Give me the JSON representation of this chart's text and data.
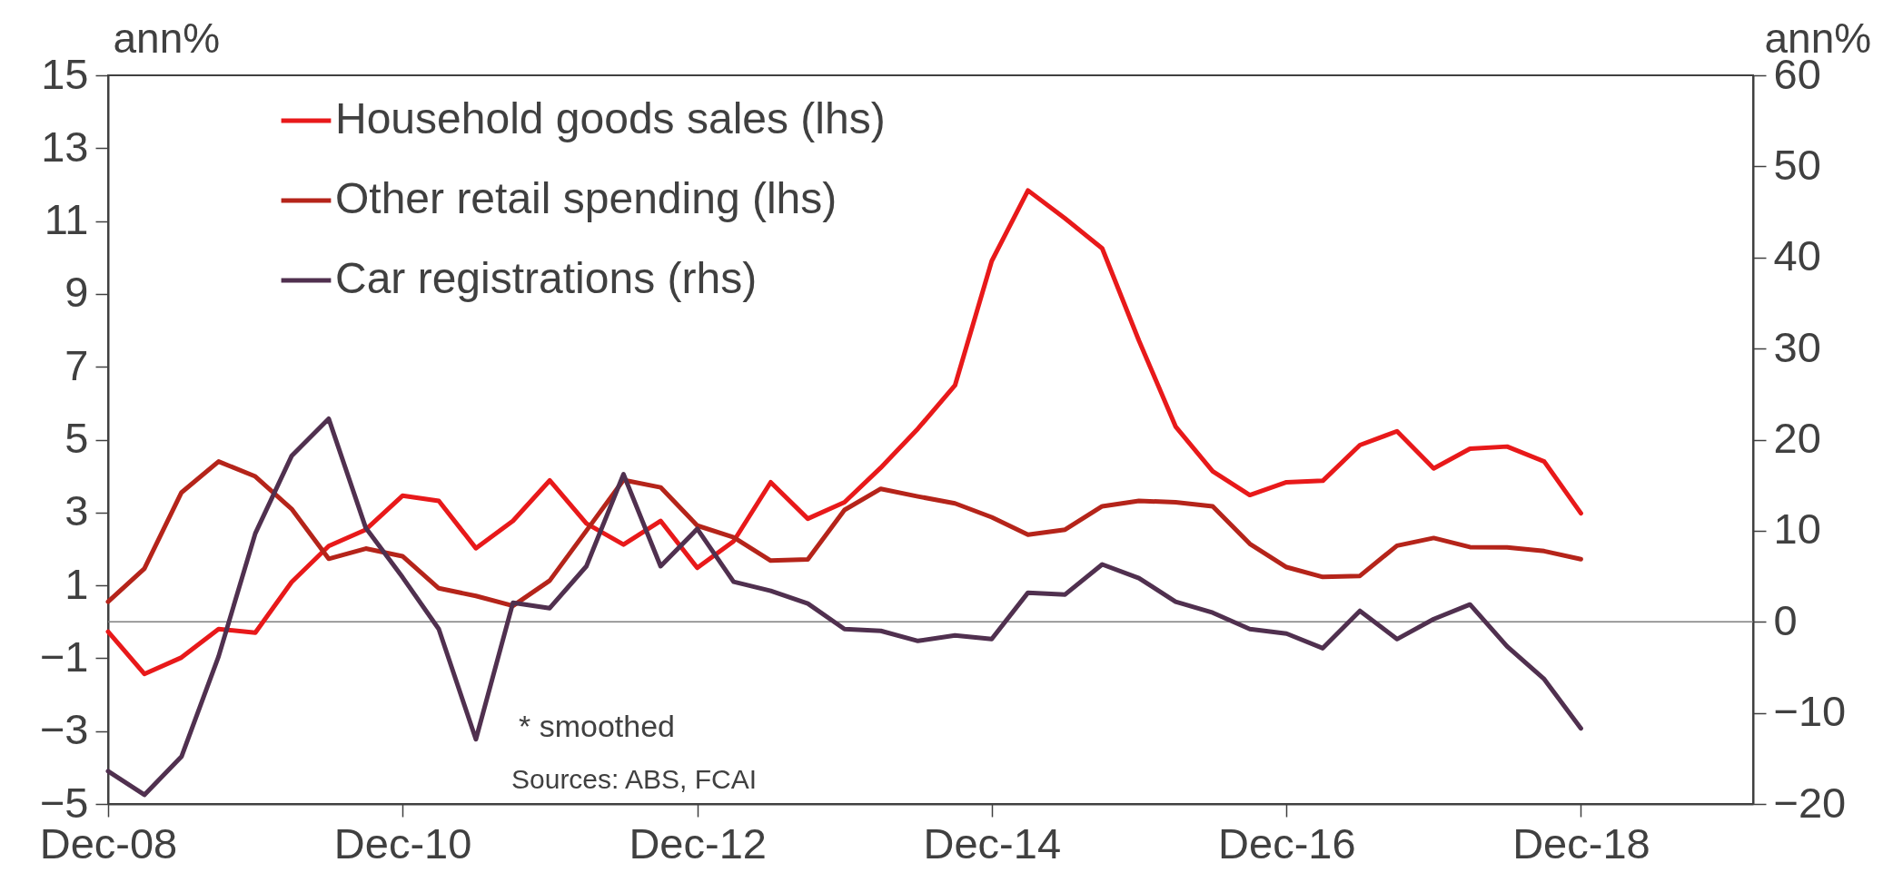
{
  "chart_data": {
    "type": "line",
    "ylabel": "ann%",
    "y2label": "ann%",
    "x": [
      "2008-12",
      "2009-03",
      "2009-06",
      "2009-09",
      "2009-12",
      "2010-03",
      "2010-06",
      "2010-09",
      "2010-12",
      "2011-03",
      "2011-06",
      "2011-09",
      "2011-12",
      "2012-03",
      "2012-06",
      "2012-09",
      "2012-12",
      "2013-03",
      "2013-06",
      "2013-09",
      "2013-12",
      "2014-03",
      "2014-06",
      "2014-09",
      "2014-12",
      "2015-03",
      "2015-06",
      "2015-09",
      "2015-12",
      "2016-03",
      "2016-06",
      "2016-09",
      "2016-12",
      "2017-03",
      "2017-06",
      "2017-09",
      "2017-12",
      "2018-03",
      "2018-06",
      "2018-09",
      "2018-12"
    ],
    "xlim": [
      "2008-12",
      "2020-02"
    ],
    "xticks": [
      {
        "value": "2008-12",
        "label": "Dec-08"
      },
      {
        "value": "2010-12",
        "label": "Dec-10"
      },
      {
        "value": "2012-12",
        "label": "Dec-12"
      },
      {
        "value": "2014-12",
        "label": "Dec-14"
      },
      {
        "value": "2016-12",
        "label": "Dec-16"
      },
      {
        "value": "2018-12",
        "label": "Dec-18"
      }
    ],
    "ylim": [
      -5,
      15
    ],
    "yticks": [
      -5,
      -3,
      -1,
      1,
      3,
      5,
      7,
      9,
      11,
      13,
      15
    ],
    "y2lim": [
      -20,
      60
    ],
    "y2ticks": [
      -20,
      -10,
      0,
      10,
      20,
      30,
      40,
      50,
      60
    ],
    "series": [
      {
        "name": "Household goods sales (lhs)",
        "color": "#e8191a",
        "values": [
          -0.27,
          -1.43,
          -0.98,
          -0.2,
          -0.3,
          1.09,
          2.08,
          2.53,
          3.46,
          3.32,
          2.02,
          2.77,
          3.88,
          2.7,
          2.12,
          2.77,
          1.48,
          2.21,
          3.83,
          2.83,
          3.28,
          4.23,
          5.3,
          6.49,
          9.9,
          11.84,
          11.07,
          10.25,
          7.72,
          5.36,
          4.13,
          3.48,
          3.83,
          3.87,
          4.85,
          5.23,
          4.21,
          4.75,
          4.81,
          4.4,
          2.98
        ]
      },
      {
        "name": "Other retail spending (lhs)",
        "color": "#b5241a",
        "values": [
          0.55,
          1.46,
          3.55,
          4.4,
          3.99,
          3.1,
          1.73,
          2.01,
          1.8,
          0.92,
          0.71,
          0.44,
          1.13,
          2.5,
          3.89,
          3.69,
          2.64,
          2.32,
          1.68,
          1.71,
          3.07,
          3.65,
          3.44,
          3.25,
          2.87,
          2.39,
          2.53,
          3.17,
          3.32,
          3.28,
          3.17,
          2.14,
          1.5,
          1.23,
          1.26,
          2.09,
          2.3,
          2.05,
          2.04,
          1.94,
          1.72
        ]
      },
      {
        "name": "Car registrations (rhs)",
        "color": "#50304f",
        "axis": "y2",
        "values": [
          -16.4,
          -19.0,
          -14.8,
          -3.8,
          9.7,
          18.2,
          22.3,
          10.3,
          4.9,
          -0.8,
          -12.9,
          2.1,
          1.5,
          6.1,
          16.2,
          6.1,
          10.2,
          4.4,
          3.4,
          2.0,
          -0.8,
          -1.0,
          -2.1,
          -1.5,
          -1.9,
          3.2,
          3.0,
          6.3,
          4.8,
          2.2,
          1.0,
          -0.8,
          -1.3,
          -2.9,
          1.2,
          -1.9,
          0.3,
          1.9,
          -2.7,
          -6.3,
          -11.7
        ]
      }
    ],
    "ref_lines": [
      {
        "axis": "y",
        "value": 0,
        "color": "#7f7f7f"
      }
    ],
    "annotations": [
      "* smoothed",
      "Sources: ABS, FCAI"
    ],
    "legend": "top left",
    "grid": false,
    "marker": "none",
    "line_style": "solid"
  }
}
